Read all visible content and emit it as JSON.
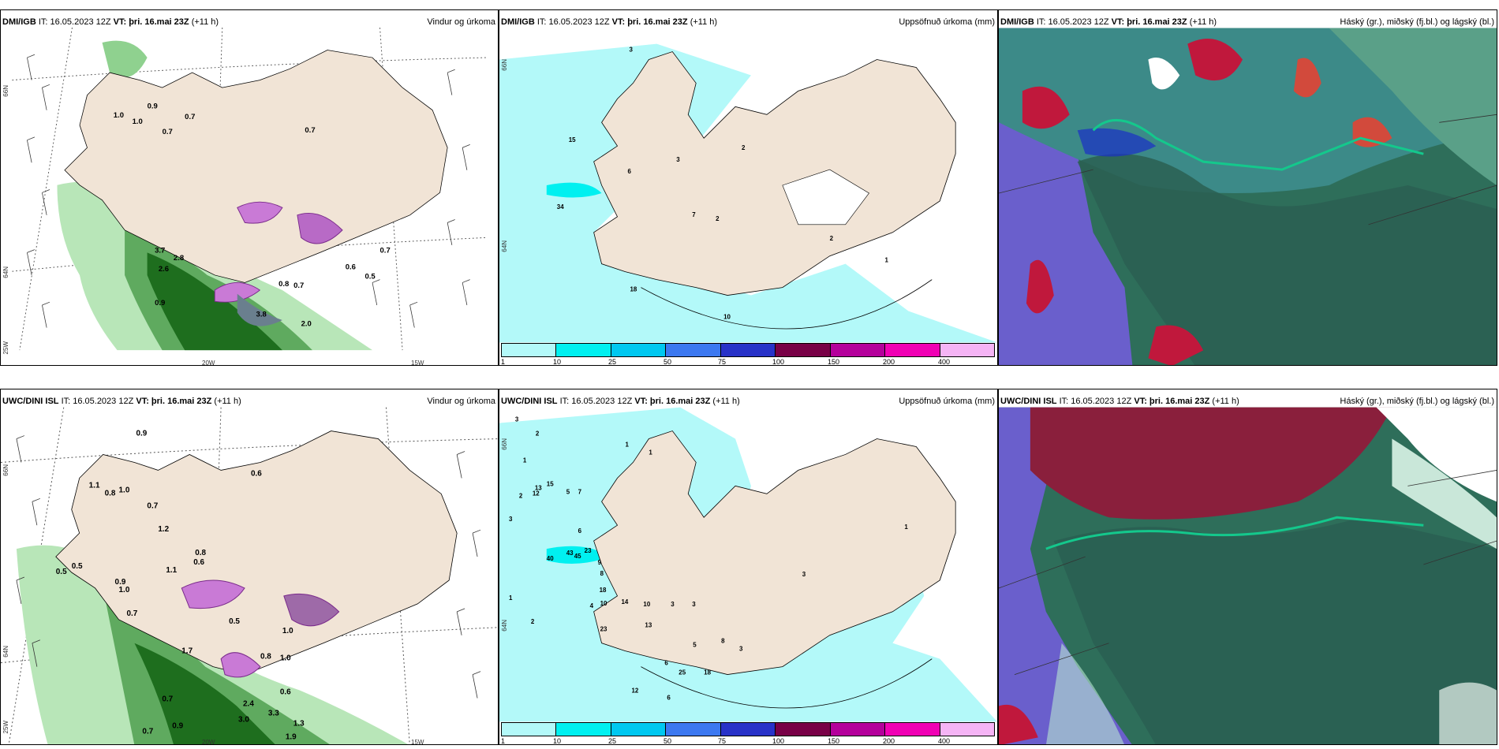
{
  "panels": [
    {
      "model": "DMI/IGB",
      "init": "IT: 16.05.2023 12Z",
      "vt": "VT: þri. 16.mai 23Z",
      "lead": "(+11 h)",
      "title": "Vindur og úrkoma"
    },
    {
      "model": "DMI/IGB",
      "init": "IT: 16.05.2023 12Z",
      "vt": "VT: þri. 16.mai 23Z",
      "lead": "(+11 h)",
      "title": "Uppsöfnuð úrkoma (mm)"
    },
    {
      "model": "DMI/IGB",
      "init": "IT: 16.05.2023 12Z",
      "vt": "VT: þri. 16.mai 23Z",
      "lead": "(+11 h)",
      "title": "Háský (gr.), miðský (fj.bl.) og lágský (bl.)"
    },
    {
      "model": "UWC/DINI ISL",
      "init": "IT: 16.05.2023 12Z",
      "vt": "VT: þri. 16.mai 23Z",
      "lead": "(+11 h)",
      "title": "Vindur og úrkoma"
    },
    {
      "model": "UWC/DINI ISL",
      "init": "IT: 16.05.2023 12Z",
      "vt": "VT: þri. 16.mai 23Z",
      "lead": "(+11 h)",
      "title": "Uppsöfnuð úrkoma (mm)"
    },
    {
      "model": "UWC/DINI ISL",
      "init": "IT: 16.05.2023 12Z",
      "vt": "VT: þri. 16.mai 23Z",
      "lead": "(+11 h)",
      "title": "Háský (gr.), miðský (fj.bl.) og lágský (bl.)"
    }
  ],
  "axis_labels": {
    "lat66": "66N",
    "lat64": "64N",
    "lon25": "25W",
    "lon20": "20W",
    "lon15": "15W"
  },
  "colorbar": {
    "ticks": [
      "1",
      "10",
      "25",
      "50",
      "75",
      "100",
      "150",
      "200",
      "400"
    ],
    "colors": [
      "#b3f9f9",
      "#00f0f0",
      "#00c8f0",
      "#3c78f0",
      "#2832c8",
      "#780046",
      "#b4009b",
      "#f000b4",
      "#f5b4f5"
    ]
  },
  "precip_labels": {
    "dmi": [
      "3",
      "15",
      "2",
      "6",
      "3",
      "34",
      "2",
      "2",
      "1",
      "7",
      "18",
      "10"
    ],
    "uwc": [
      "3",
      "2",
      "1",
      "1",
      "1",
      "3",
      "15",
      "13",
      "12",
      "2",
      "5",
      "7",
      "6",
      "40",
      "23",
      "43",
      "45",
      "9",
      "8",
      "18",
      "10",
      "14",
      "10",
      "4",
      "3",
      "3",
      "1",
      "2",
      "23",
      "13",
      "6",
      "12",
      "25",
      "18",
      "6",
      "5",
      "8",
      "3",
      "3",
      "1"
    ]
  },
  "wind_labels": {
    "dmi": [
      "0.9",
      "1.0",
      "1.0",
      "0.7",
      "0.7",
      "0.7",
      "3.7",
      "2.8",
      "2.6",
      "0.9",
      "0.8",
      "0.7",
      "3.8",
      "2.0",
      "0.7",
      "0.5",
      "0.6"
    ],
    "uwc": [
      "0.9",
      "0.6",
      "1.1",
      "1.0",
      "0.8",
      "0.7",
      "1.2",
      "0.5",
      "0.5",
      "0.9",
      "1.0",
      "0.6",
      "1.1",
      "0.7",
      "0.5",
      "1.7",
      "0.8",
      "1.0",
      "2.4",
      "3.3",
      "3.0",
      "1.3",
      "0.7",
      "0.9",
      "0.7",
      "1.9",
      "0.6",
      "0.8",
      "1.0"
    ]
  }
}
